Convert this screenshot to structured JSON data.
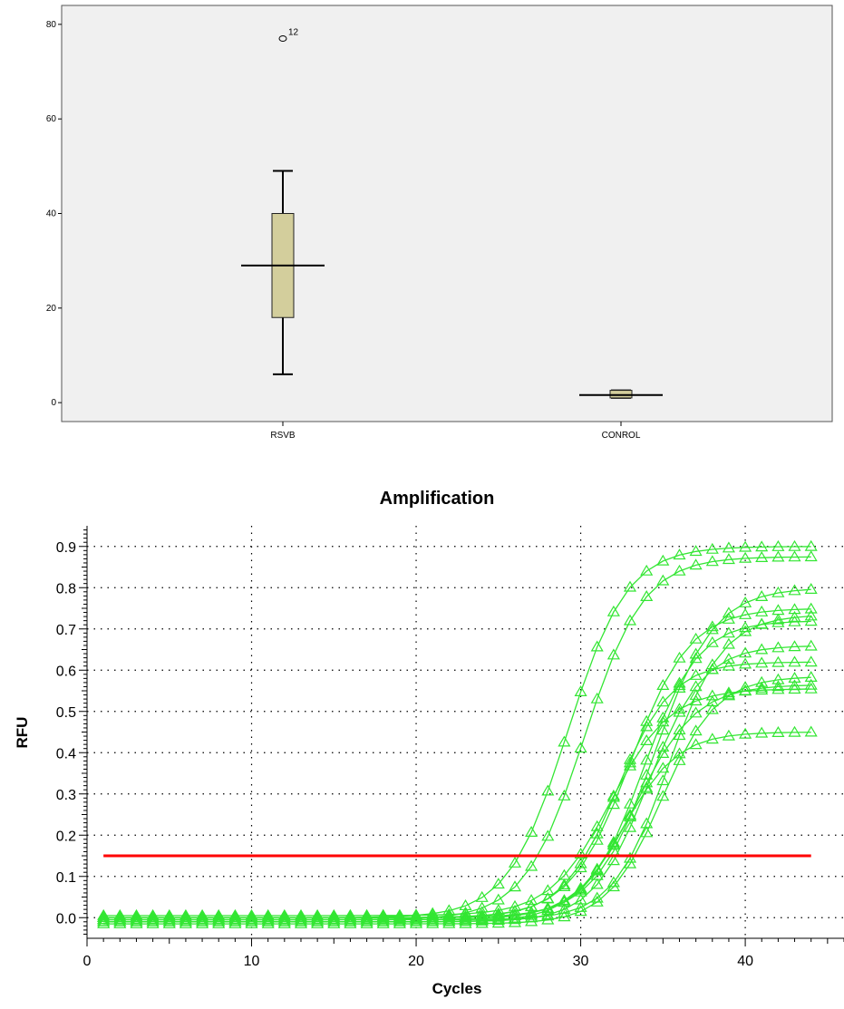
{
  "chart_data": [
    {
      "type": "boxplot",
      "title": "",
      "xlabel": "",
      "ylabel": "",
      "categories": [
        "RSVB",
        "CONROL"
      ],
      "ylim": [
        -4,
        84
      ],
      "yticks": [
        0,
        20,
        40,
        60,
        80
      ],
      "grid": false,
      "background": "#f0f0f0",
      "box_color": "#d3ce9c",
      "boxes": [
        {
          "category": "RSVB",
          "whisker_low": 6,
          "q1": 18,
          "median": 29,
          "q3": 40,
          "whisker_high": 49
        },
        {
          "category": "CONROL",
          "whisker_low": 1,
          "q1": 1,
          "median": 1.6,
          "q3": 2.6,
          "whisker_high": 2.6
        }
      ],
      "outliers": [
        {
          "category": "RSVB",
          "value": 77,
          "label": "12"
        }
      ]
    },
    {
      "type": "line",
      "title": "Amplification",
      "xlabel": "Cycles",
      "ylabel": "RFU",
      "xlim": [
        0,
        46
      ],
      "ylim": [
        -0.05,
        0.95
      ],
      "xticks": [
        0,
        10,
        20,
        30,
        40
      ],
      "yticks": [
        0.0,
        0.1,
        0.2,
        0.3,
        0.4,
        0.5,
        0.6,
        0.7,
        0.8,
        0.9
      ],
      "grid": true,
      "marker": "triangle",
      "series_color": "#33e633",
      "threshold": {
        "value": 0.15,
        "x_range": [
          1,
          44
        ],
        "color": "#ff0000"
      },
      "series": [
        {
          "midpoint": 29.2,
          "slope": 0.55,
          "plateau": 0.9,
          "start": 0.0
        },
        {
          "midpoint": 30.2,
          "slope": 0.55,
          "plateau": 0.88,
          "start": -0.005
        },
        {
          "midpoint": 31.8,
          "slope": 0.55,
          "plateau": 0.55,
          "start": 0.005
        },
        {
          "midpoint": 32.2,
          "slope": 0.6,
          "plateau": 0.62,
          "start": 0.0
        },
        {
          "midpoint": 32.6,
          "slope": 0.6,
          "plateau": 0.46,
          "start": -0.01
        },
        {
          "midpoint": 33.0,
          "slope": 0.55,
          "plateau": 0.75,
          "start": 0.0
        },
        {
          "midpoint": 33.4,
          "slope": 0.55,
          "plateau": 0.57,
          "start": -0.005
        },
        {
          "midpoint": 33.8,
          "slope": 0.6,
          "plateau": 0.72,
          "start": 0.0
        },
        {
          "midpoint": 34.1,
          "slope": 0.6,
          "plateau": 0.67,
          "start": -0.01
        },
        {
          "midpoint": 34.5,
          "slope": 0.55,
          "plateau": 0.8,
          "start": 0.0
        },
        {
          "midpoint": 34.9,
          "slope": 0.6,
          "plateau": 0.6,
          "start": -0.015
        },
        {
          "midpoint": 35.3,
          "slope": 0.6,
          "plateau": 0.74,
          "start": -0.005
        }
      ]
    }
  ],
  "box_chart": {
    "outlier_label": "12"
  },
  "amp_chart": {
    "title": "Amplification",
    "xlabel": "Cycles",
    "ylabel": "RFU"
  }
}
